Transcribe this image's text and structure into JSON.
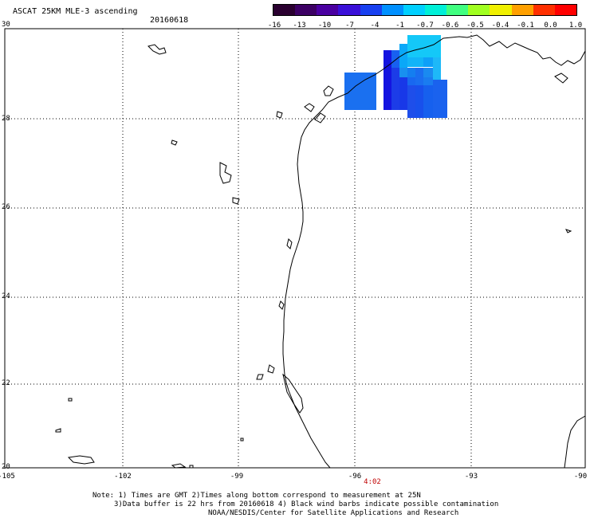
{
  "header": {
    "title": "ASCAT 25KM MLE-3 ascending",
    "date": "20160618"
  },
  "colorbar": {
    "labels": [
      "-16",
      "-13",
      "-10",
      "-7",
      "-4",
      "-1",
      "-0.7",
      "-0.6",
      "-0.5",
      "-0.4",
      "-0.1",
      "0.0",
      "1.0"
    ],
    "colors": [
      "#2a0030",
      "#3c0064",
      "#4a00a0",
      "#3a10d8",
      "#1840f0",
      "#0090ff",
      "#00d0ff",
      "#00f0d8",
      "#40ff80",
      "#a0ff20",
      "#f0f000",
      "#ffa000",
      "#ff3000",
      "#ff0000"
    ]
  },
  "map": {
    "lat_labels": [
      "30",
      "28",
      "26",
      "24",
      "22",
      "20"
    ],
    "lon_labels": [
      "-105",
      "-102",
      "-99",
      "-96",
      "-93",
      "-90"
    ],
    "pass_time": "4:02"
  },
  "notes": {
    "line1": "Note: 1) Times are GMT 2)Times along bottom correspond to measurement at 25N",
    "line2": "3)Data buffer is 22 hrs from 20160618 4) Black wind barbs indicate possible contamination",
    "line3": "NOAA/NESDIS/Center for Satellite Applications and Research"
  }
}
